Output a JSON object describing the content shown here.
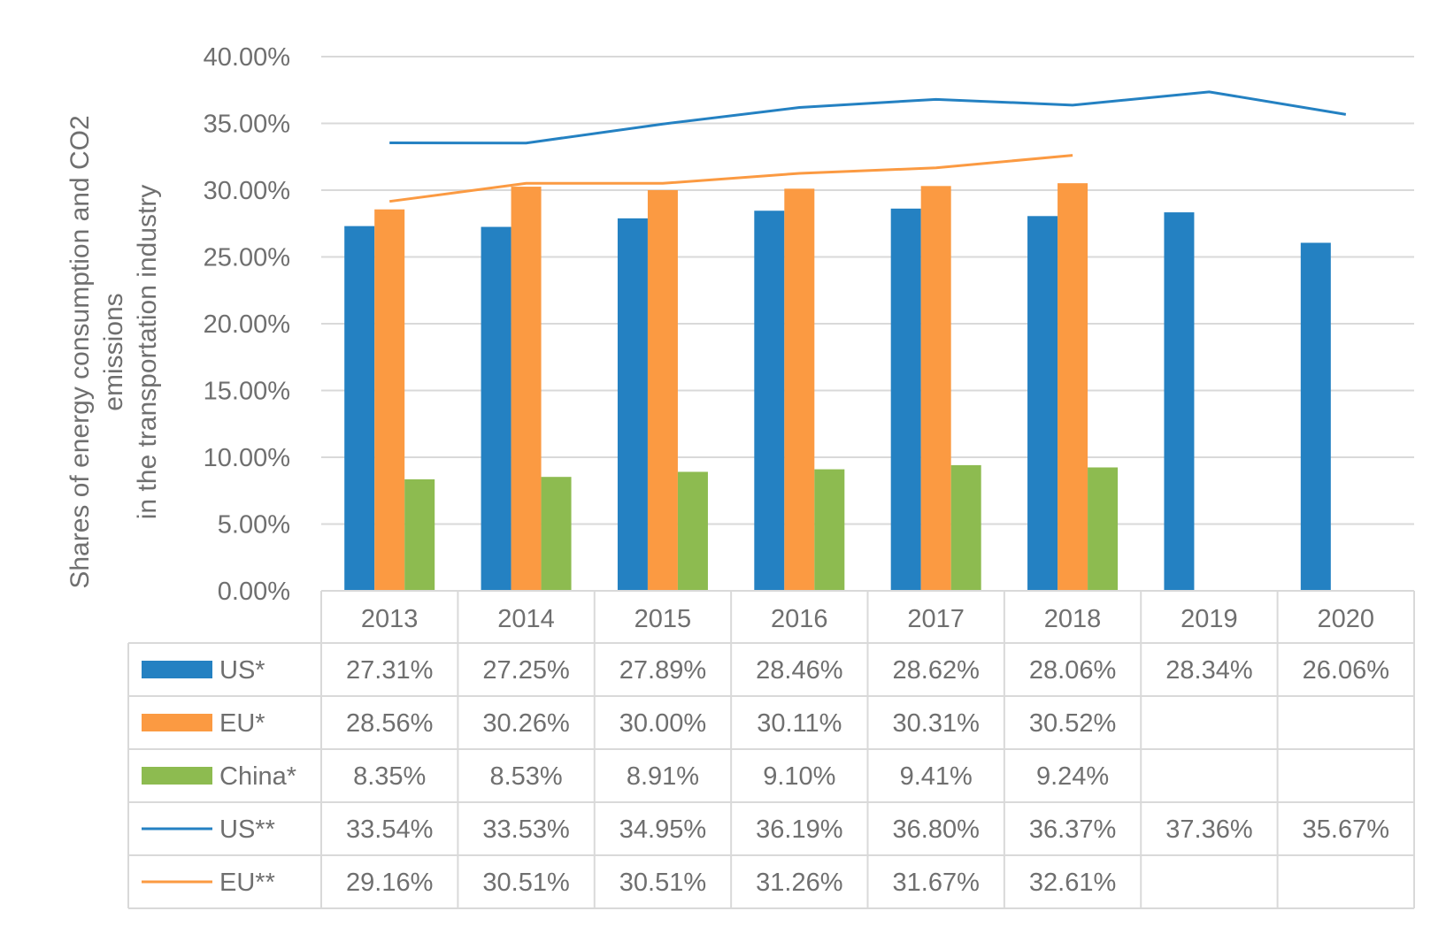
{
  "chart_data": {
    "type": "bar",
    "categories": [
      "2013",
      "2014",
      "2015",
      "2016",
      "2017",
      "2018",
      "2019",
      "2020"
    ],
    "ylabel_line1": "Shares of energy consumption and CO2",
    "ylabel_line2": "emissions",
    "ylabel_line3": "in the transportation industry",
    "ylim": [
      0,
      40
    ],
    "yticks": [
      0,
      5,
      10,
      15,
      20,
      25,
      30,
      35,
      40
    ],
    "ytick_labels": [
      "0.00%",
      "5.00%",
      "10.00%",
      "15.00%",
      "20.00%",
      "25.00%",
      "30.00%",
      "35.00%",
      "40.00%"
    ],
    "grid": true,
    "legend": "data-table",
    "series": [
      {
        "name": "US*",
        "kind": "bar",
        "color": "#2481c2",
        "values": [
          27.31,
          27.25,
          27.89,
          28.46,
          28.62,
          28.06,
          28.34,
          26.06
        ],
        "labels": [
          "27.31%",
          "27.25%",
          "27.89%",
          "28.46%",
          "28.62%",
          "28.06%",
          "28.34%",
          "26.06%"
        ]
      },
      {
        "name": "EU*",
        "kind": "bar",
        "color": "#fb9a42",
        "values": [
          28.56,
          30.26,
          30.0,
          30.11,
          30.31,
          30.52,
          null,
          null
        ],
        "labels": [
          "28.56%",
          "30.26%",
          "30.00%",
          "30.11%",
          "30.31%",
          "30.52%",
          "",
          ""
        ]
      },
      {
        "name": "China*",
        "kind": "bar",
        "color": "#8dbb50",
        "values": [
          8.35,
          8.53,
          8.91,
          9.1,
          9.41,
          9.24,
          null,
          null
        ],
        "labels": [
          "8.35%",
          "8.53%",
          "8.91%",
          "9.10%",
          "9.41%",
          "9.24%",
          "",
          ""
        ]
      },
      {
        "name": "US**",
        "kind": "line",
        "color": "#2481c2",
        "values": [
          33.54,
          33.53,
          34.95,
          36.19,
          36.8,
          36.37,
          37.36,
          35.67
        ],
        "labels": [
          "33.54%",
          "33.53%",
          "34.95%",
          "36.19%",
          "36.80%",
          "36.37%",
          "37.36%",
          "35.67%"
        ]
      },
      {
        "name": "EU**",
        "kind": "line",
        "color": "#fb9a42",
        "values": [
          29.16,
          30.51,
          30.51,
          31.26,
          31.67,
          32.61,
          null,
          null
        ],
        "labels": [
          "29.16%",
          "30.51%",
          "30.51%",
          "31.26%",
          "31.67%",
          "32.61%",
          "",
          ""
        ]
      }
    ]
  }
}
